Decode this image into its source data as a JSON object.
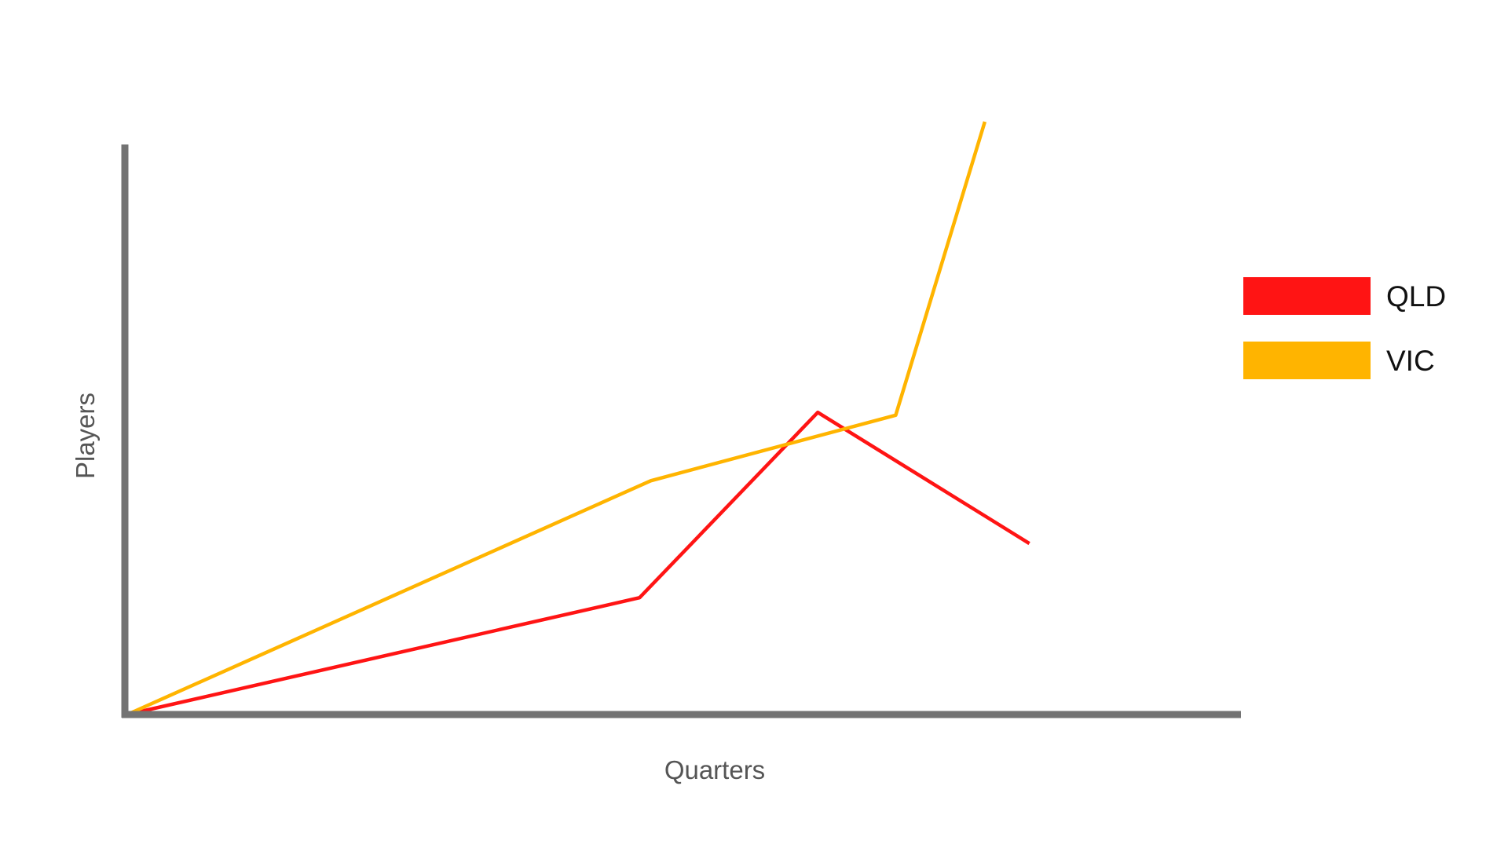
{
  "chart_data": {
    "type": "line",
    "title": "",
    "xlabel": "Quarters",
    "ylabel": "Players",
    "xlim": [
      0,
      10
    ],
    "ylim": [
      0,
      10
    ],
    "grid": false,
    "legend_position": "right",
    "series": [
      {
        "name": "QLD",
        "color": "#FF1414",
        "points": [
          {
            "x": 0,
            "y": 0
          },
          {
            "x": 4.6,
            "y": 2.05
          },
          {
            "x": 6.2,
            "y": 5.3
          },
          {
            "x": 8.1,
            "y": 3.0
          }
        ]
      },
      {
        "name": "VIC",
        "color": "#FFB400",
        "points": [
          {
            "x": 0,
            "y": 0
          },
          {
            "x": 4.7,
            "y": 4.1
          },
          {
            "x": 6.9,
            "y": 5.25
          },
          {
            "x": 7.7,
            "y": 10.4
          }
        ]
      }
    ]
  },
  "colors": {
    "axis": "#737373"
  }
}
